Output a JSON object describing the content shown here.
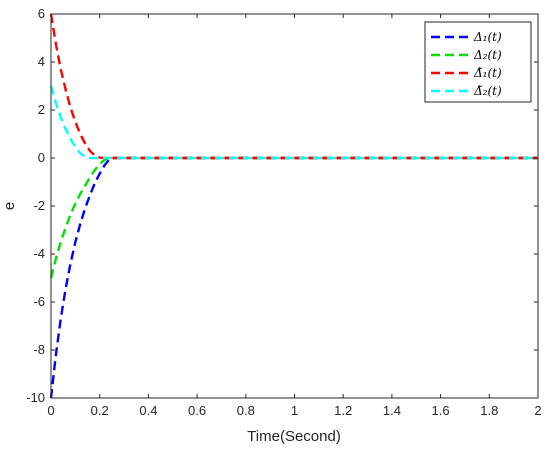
{
  "chart_data": {
    "type": "line",
    "title": "",
    "xlabel": "Time(Second)",
    "ylabel": "e",
    "xlim": [
      0,
      2
    ],
    "ylim": [
      -10,
      6
    ],
    "x_ticks": [
      0,
      0.2,
      0.4,
      0.6,
      0.8,
      1,
      1.2,
      1.4,
      1.6,
      1.8,
      2
    ],
    "x_tick_labels": [
      "0",
      "0.2",
      "0.4",
      "0.6",
      "0.8",
      "1",
      "1.2",
      "1.4",
      "1.6",
      "1.8",
      "2"
    ],
    "y_ticks": [
      -10,
      -8,
      -6,
      -4,
      -2,
      0,
      2,
      4,
      6
    ],
    "y_tick_labels": [
      "-10",
      "-8",
      "-6",
      "-4",
      "-2",
      "0",
      "2",
      "4",
      "6"
    ],
    "grid": false,
    "legend_position": "top-right",
    "series": [
      {
        "name": "Δ₁(t)",
        "color": "#0000ff",
        "style": "dashed",
        "points": [
          [
            0,
            -10
          ],
          [
            0.02,
            -8.2
          ],
          [
            0.04,
            -6.7
          ],
          [
            0.06,
            -5.45
          ],
          [
            0.08,
            -4.4
          ],
          [
            0.1,
            -3.5
          ],
          [
            0.12,
            -2.75
          ],
          [
            0.14,
            -2.1
          ],
          [
            0.16,
            -1.55
          ],
          [
            0.18,
            -1.05
          ],
          [
            0.2,
            -0.65
          ],
          [
            0.22,
            -0.3
          ],
          [
            0.24,
            -0.05
          ],
          [
            0.26,
            0
          ],
          [
            2,
            0
          ]
        ]
      },
      {
        "name": "Δ₂(t)",
        "color": "#00e000",
        "style": "dashed",
        "points": [
          [
            0,
            -5
          ],
          [
            0.02,
            -4.2
          ],
          [
            0.04,
            -3.5
          ],
          [
            0.06,
            -2.9
          ],
          [
            0.08,
            -2.35
          ],
          [
            0.1,
            -1.9
          ],
          [
            0.12,
            -1.5
          ],
          [
            0.14,
            -1.15
          ],
          [
            0.16,
            -0.8
          ],
          [
            0.18,
            -0.5
          ],
          [
            0.2,
            -0.25
          ],
          [
            0.22,
            -0.08
          ],
          [
            0.24,
            0
          ],
          [
            2,
            0
          ]
        ]
      },
      {
        "name": "Δ̃₁(t)",
        "color": "#ff0000",
        "style": "dashed",
        "points": [
          [
            0,
            6
          ],
          [
            0.02,
            4.75
          ],
          [
            0.04,
            3.7
          ],
          [
            0.06,
            2.85
          ],
          [
            0.08,
            2.1
          ],
          [
            0.1,
            1.5
          ],
          [
            0.12,
            1.0
          ],
          [
            0.14,
            0.6
          ],
          [
            0.16,
            0.3
          ],
          [
            0.18,
            0.1
          ],
          [
            0.2,
            0.02
          ],
          [
            0.22,
            0
          ],
          [
            2,
            0
          ]
        ]
      },
      {
        "name": "Δ̃₂(t)",
        "color": "#00ffff",
        "style": "dashed",
        "points": [
          [
            0,
            3
          ],
          [
            0.02,
            2.3
          ],
          [
            0.04,
            1.7
          ],
          [
            0.06,
            1.2
          ],
          [
            0.08,
            0.8
          ],
          [
            0.1,
            0.45
          ],
          [
            0.12,
            0.2
          ],
          [
            0.14,
            0.05
          ],
          [
            0.16,
            0
          ],
          [
            2,
            0
          ]
        ]
      }
    ]
  }
}
